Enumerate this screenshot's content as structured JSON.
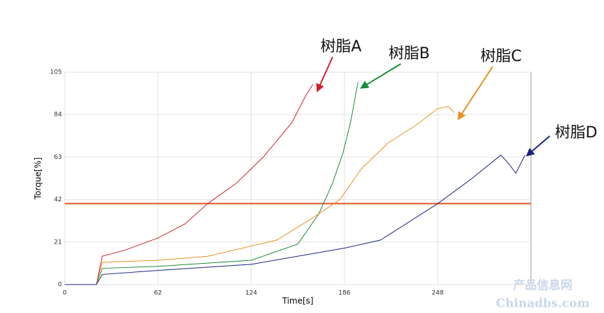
{
  "chart_data": {
    "type": "line",
    "x_label": "Time[s]",
    "y_label": "Torque[%]",
    "xlim": [
      0,
      310
    ],
    "xticks": [
      0,
      62,
      124,
      186,
      248
    ],
    "ylim": [
      0,
      105
    ],
    "yticks": [
      0,
      21,
      42,
      63,
      84,
      105
    ],
    "grid": true,
    "reference_line": {
      "value": 40,
      "color": "#e05020"
    },
    "series": [
      {
        "name": "树脂A",
        "color": "#d0202a",
        "x": [
          0,
          21,
          25,
          40,
          62,
          80,
          95,
          114,
          132,
          151,
          160,
          165
        ],
        "values": [
          0,
          0,
          14,
          17,
          23,
          30,
          40,
          50,
          63,
          80,
          93,
          99
        ]
      },
      {
        "name": "树脂B",
        "color": "#1a8a3a",
        "x": [
          0,
          21,
          25,
          62,
          124,
          155,
          169,
          178,
          185,
          190,
          195
        ],
        "values": [
          0,
          0,
          8,
          9,
          12,
          20,
          35,
          50,
          65,
          80,
          100
        ]
      },
      {
        "name": "树脂C",
        "color": "#e89020",
        "x": [
          0,
          21,
          25,
          62,
          95,
          141,
          165,
          183,
          197,
          215,
          234,
          248,
          255,
          259
        ],
        "values": [
          0,
          0,
          11,
          12,
          14,
          22,
          33,
          42,
          57,
          70,
          79,
          87,
          88,
          85
        ]
      },
      {
        "name": "树脂D",
        "color": "#1a237e",
        "x": [
          0,
          21,
          25,
          62,
          124,
          186,
          210,
          248,
          270,
          290,
          295,
          300,
          306
        ],
        "values": [
          0,
          0,
          5,
          7,
          10,
          18,
          22,
          40,
          52,
          64,
          60,
          55,
          64
        ]
      }
    ],
    "watermark": [
      "产品信息网",
      "Chinadbs.com"
    ]
  }
}
